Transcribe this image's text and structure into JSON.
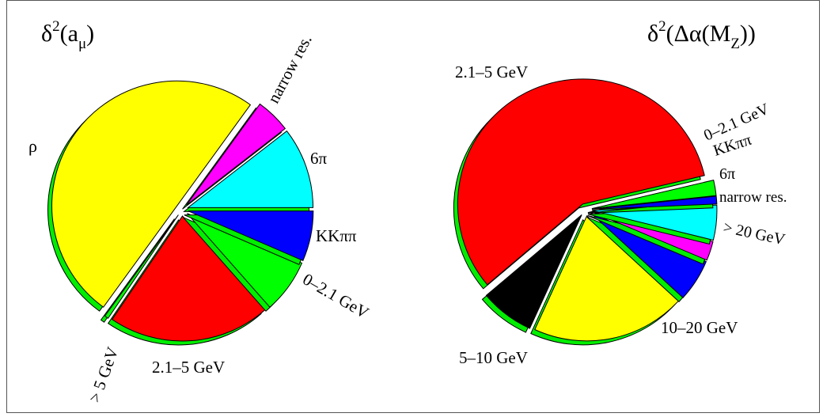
{
  "chart_data": [
    {
      "type": "pie",
      "title": "δ²(a_μ)",
      "title_parts": {
        "main": "δ",
        "sup": "2",
        "open": "(a",
        "sub": "μ",
        "close": ")"
      },
      "slices": [
        {
          "label": "6π",
          "value": 10.5,
          "color": "#00ffff"
        },
        {
          "label": "narrow res.",
          "value": 4.5,
          "color": "#ff00ff"
        },
        {
          "label": "ρ",
          "value": 50.0,
          "color": "#ffff00"
        },
        {
          "label": "> 5 GeV",
          "value": 0.5,
          "color": "#00ff00"
        },
        {
          "label": "2.1–5 GeV",
          "value": 21.0,
          "color": "#ff0000"
        },
        {
          "label": "0–2.1 GeV",
          "value": 7.0,
          "color": "#00ff00"
        },
        {
          "label": "KKππ",
          "value": 6.5,
          "color": "#0000ff"
        }
      ]
    },
    {
      "type": "pie",
      "title": "δ²(Δα(M_Z))",
      "title_parts": {
        "main": "δ",
        "sup": "2",
        "open": "(Δα(M",
        "sub": "Z",
        "close": "))"
      },
      "slices": [
        {
          "label": "0–2.1 GeV",
          "value": 2.0,
          "color": "#00ff00"
        },
        {
          "label": "2.1–5 GeV",
          "value": 57.5,
          "color": "#ff0000"
        },
        {
          "label": "5–10 GeV",
          "value": 7.0,
          "color": "#000000"
        },
        {
          "label": "10–20 GeV",
          "value": 20.0,
          "color": "#ffff00"
        },
        {
          "label": "> 20 GeV",
          "value": 5.5,
          "color": "#0000ff"
        },
        {
          "label": "narrow res.",
          "value": 2.5,
          "color": "#ff00ff"
        },
        {
          "label": "6π",
          "value": 4.5,
          "color": "#00ffff"
        },
        {
          "label": "KKππ",
          "value": 1.0,
          "color": "#0000ff"
        }
      ]
    }
  ]
}
